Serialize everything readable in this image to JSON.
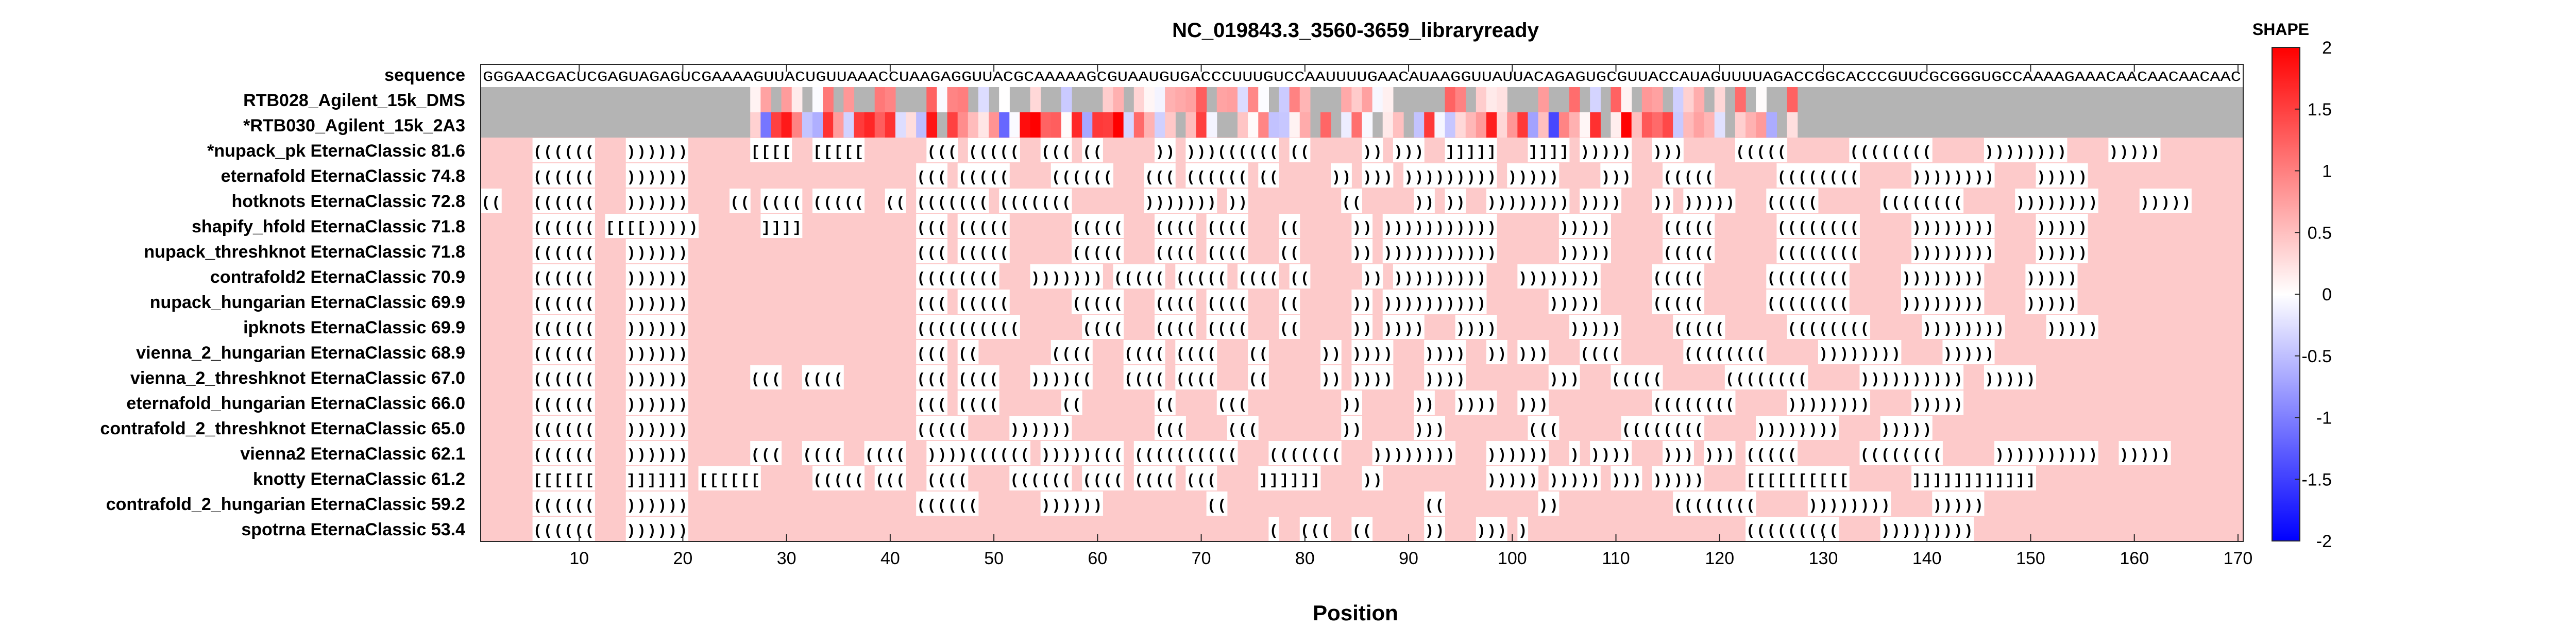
{
  "chart_data": {
    "type": "heatmap",
    "title": "NC_019843.3_3560-3659_libraryready",
    "xlabel": "Position",
    "xlim": [
      0.5,
      170.5
    ],
    "xticks": [
      10,
      20,
      30,
      40,
      50,
      60,
      70,
      80,
      90,
      100,
      110,
      120,
      130,
      140,
      150,
      160,
      170
    ],
    "sequence_label": "sequence",
    "sequence": "GGGAACGACUCGAGUAGAGUCGAAAAGUUACUGUUAAACCUAAGAGGUUACGCAAAAAGCGUAAUGUGACCCUUUGUCCAAUUUUGAACAUAAGGUUAUUACAGAGUGCGUUACCAUAGUUUUAGACCGGCACCCGUUCGCGGGUGCCAAAAGAAACAACAACAACAAC",
    "shape_rows": [
      {
        "name": "RTB028_Agilent_15k_DMS"
      },
      {
        "name": "*RTB030_Agilent_15k_2A3"
      }
    ],
    "shape_data_range": [
      27,
      127
    ],
    "colorbar": {
      "title": "SHAPE",
      "ticks": [
        2,
        1.5,
        1,
        0.5,
        0,
        -0.5,
        -1,
        -1.5,
        -2
      ],
      "tick_labels": [
        "2",
        "1.5",
        "1",
        "0.5",
        "0",
        "-0.5",
        "-1",
        "-1.5",
        "-2"
      ],
      "range": [
        -2,
        2
      ],
      "colors": {
        "high": "#ff0000",
        "mid": "#ffffff",
        "low": "#0000ff"
      }
    },
    "structures": [
      {
        "name": "*nupack_pk EternaClassic",
        "score": "81.6",
        "dotbracket": ".....((((((...))))))......[[[[..[[[[[......(((.(((((..(((.((.....)).)))((((((.((.....)).)))..]]]]]...]]]].)))))..))).....(((((......((((((((.....))))))))....)))))................."
      },
      {
        "name": "eternafold EternaClassic",
        "score": "74.8",
        "dotbracket": ".....((((((...))))))......................(((.(((((....((((((...(((.((((((.((.....)).))).))))))))).)))))....)))...(((((......((((((((.....))))))))....)))))................."
      },
      {
        "name": "hotknots EternaClassic",
        "score": "72.8",
        "dotbracket": "((...((((((...))))))....((.((((.(((((..((.(((((((.(((((((.......))))))).)).........((.....)).))..)))))))).))))...)).)))))...(((((......((((((((.....))))))))....)))))................."
      },
      {
        "name": "shapify_hfold EternaClassic",
        "score": "71.8",
        "dotbracket": ".....((((((.[[[[)))))......]]]]...........(((.(((((......(((((...((((.((((...((.....)).)))))))))))......))))).....(((((......((((((((.....))))))))....)))))................."
      },
      {
        "name": "nupack_threshknot EternaClassic",
        "score": "71.8",
        "dotbracket": ".....((((((...))))))......................(((.(((((......(((((...((((.((((...((.....)).)))))))))))......))))).....(((((......((((((((.....))))))))....)))))................."
      },
      {
        "name": "contrafold2 EternaClassic",
        "score": "70.9",
        "dotbracket": ".....((((((...))))))......................((((((((...))))))).(((((.(((((.((((.((.....)).)))))))))...)))))))).....(((((......((((((((.....))))))))....)))))................."
      },
      {
        "name": "nupack_hungarian EternaClassic",
        "score": "69.9",
        "dotbracket": ".....((((((...))))))......................(((.(((((......(((((...((((.((((...((.....)).))))))))))......))))).....(((((......((((((((.....))))))))....)))))................."
      },
      {
        "name": "ipknots EternaClassic",
        "score": "69.9",
        "dotbracket": ".....((((((...))))))......................((((((((((......((((...((((.((((...((.....)).))))...)))).......))))).....(((((......((((((((.....))))))))....)))))................."
      },
      {
        "name": "vienna_2_hungarian EternaClassic",
        "score": "68.9",
        "dotbracket": ".....((((((...))))))......................(((.((.......((((...((((.((((...((.....)).))))...))))..)).)))...((((......((((((((.....))))))))....)))))................."
      },
      {
        "name": "vienna_2_threshknot EternaClassic",
        "score": "67.0",
        "dotbracket": ".....((((((...))))))......(((..((((.......(((.((((...))))((...((((.((((...((.....)).))))...))))........)))...(((((......((((((((.....))))))))))..)))))......................."
      },
      {
        "name": "eternafold_hungarian EternaClassic",
        "score": "66.0",
        "dotbracket": ".....((((((...))))))......................(((.((((......((.......((....(((.........)).....))..))))..)))..........((((((((.....))))))))....)))))................."
      },
      {
        "name": "contrafold_2_threshknot EternaClassic",
        "score": "65.0",
        "dotbracket": ".....((((((...))))))......................(((((....))))))........(((....(((........)).....)))........(((......((((((((.....))))))))....)))))................."
      },
      {
        "name": "vienna2 EternaClassic",
        "score": "62.1",
        "dotbracket": ".....((((((...))))))......(((..((((..((((..))))((((((.)))))(((.((((((((((...(((((((...))))))))...))))))..).))))...))).))).(((((......((((((((.....))))))))))..)))))......................."
      },
      {
        "name": "knotty EternaClassic",
        "score": "61.2",
        "dotbracket": ".....[[[[[[...]]]]]].[[[[[[.....(((((.(((..((((....((((((.((((.((((.(((....]]]]]]....))..........))))).))))).))).)))))....[[[[[[[[[[......]]]]]]]]]]]]................."
      },
      {
        "name": "contrafold_2_hungarian EternaClassic",
        "score": "59.2",
        "dotbracket": ".....((((((...))))))......................((((((......))))))..........((...................((.........))...........((((((((.....))))))))....)))))................."
      },
      {
        "name": "spotrna EternaClassic",
        "score": "53.4",
        "dotbracket": ".....((((((...))))))........................................................(..(((..((.....))...))).).....................(((((((((....)))))))))................................"
      }
    ]
  }
}
